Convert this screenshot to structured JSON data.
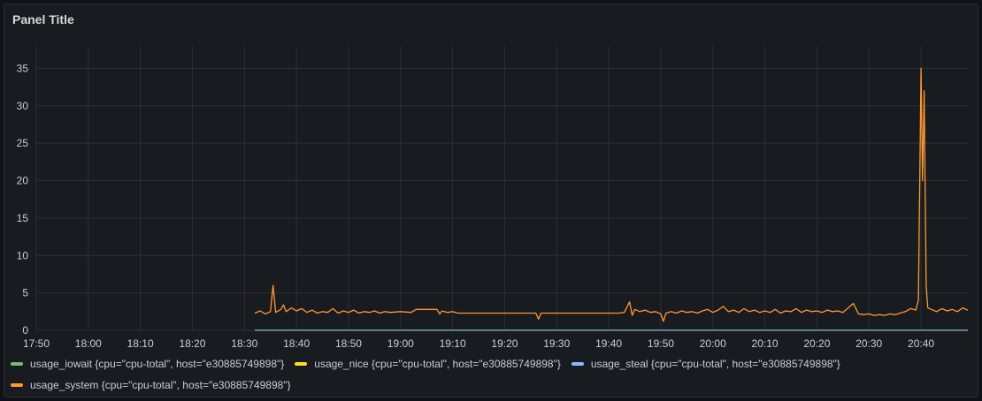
{
  "panel": {
    "title": "Panel Title"
  },
  "chart_data": {
    "type": "line",
    "title": "Panel Title",
    "xlabel": "",
    "ylabel": "",
    "x_ticks": [
      "17:50",
      "18:00",
      "18:10",
      "18:20",
      "18:30",
      "18:40",
      "18:50",
      "19:00",
      "19:10",
      "19:20",
      "19:30",
      "19:40",
      "19:50",
      "20:00",
      "20:10",
      "20:20",
      "20:30",
      "20:40"
    ],
    "y_ticks": [
      0,
      5,
      10,
      15,
      20,
      25,
      30,
      35
    ],
    "xlim": [
      "17:50",
      "20:49"
    ],
    "ylim": [
      0,
      38
    ],
    "grid": true,
    "legend_position": "bottom",
    "series": [
      {
        "name": "usage_iowait {cpu=\"cpu-total\", host=\"e30885749898\"}",
        "color": "#73bf69",
        "points": [
          [
            "18:32",
            0.02
          ],
          [
            "20:49",
            0.02
          ]
        ]
      },
      {
        "name": "usage_nice {cpu=\"cpu-total\", host=\"e30885749898\"}",
        "color": "#fade2a",
        "points": [
          [
            "18:32",
            0
          ],
          [
            "20:49",
            0
          ]
        ]
      },
      {
        "name": "usage_steal {cpu=\"cpu-total\", host=\"e30885749898\"}",
        "color": "#8ab8ff",
        "points": [
          [
            "18:32",
            0
          ],
          [
            "20:49",
            0
          ]
        ]
      },
      {
        "name": "usage_system {cpu=\"cpu-total\", host=\"e30885749898\"}",
        "color": "#ff9830",
        "points": [
          [
            "18:32",
            2.3
          ],
          [
            "18:33",
            2.6
          ],
          [
            "18:34",
            2.2
          ],
          [
            "18:35",
            2.5
          ],
          [
            "18:35.5",
            6.0
          ],
          [
            "18:36",
            2.4
          ],
          [
            "18:37",
            2.8
          ],
          [
            "18:37.5",
            3.4
          ],
          [
            "18:38",
            2.5
          ],
          [
            "18:39",
            3.0
          ],
          [
            "18:40",
            2.6
          ],
          [
            "18:41",
            2.9
          ],
          [
            "18:42",
            2.4
          ],
          [
            "18:43",
            2.7
          ],
          [
            "18:44",
            2.3
          ],
          [
            "18:45",
            2.5
          ],
          [
            "18:46",
            2.4
          ],
          [
            "18:47",
            2.9
          ],
          [
            "18:48",
            2.3
          ],
          [
            "18:49",
            2.6
          ],
          [
            "18:50",
            2.4
          ],
          [
            "18:51",
            2.7
          ],
          [
            "18:52",
            2.3
          ],
          [
            "18:53",
            2.5
          ],
          [
            "18:54",
            2.4
          ],
          [
            "18:55",
            2.6
          ],
          [
            "18:56",
            2.3
          ],
          [
            "18:57",
            2.5
          ],
          [
            "18:58",
            2.4
          ],
          [
            "19:00",
            2.5
          ],
          [
            "19:02",
            2.4
          ],
          [
            "19:03",
            2.8
          ],
          [
            "19:07",
            2.8
          ],
          [
            "19:07.5",
            2.2
          ],
          [
            "19:08",
            2.6
          ],
          [
            "19:09",
            2.4
          ],
          [
            "19:10",
            2.5
          ],
          [
            "19:11",
            2.3
          ],
          [
            "19:26",
            2.3
          ],
          [
            "19:26.5",
            1.5
          ],
          [
            "19:27",
            2.3
          ],
          [
            "19:42",
            2.3
          ],
          [
            "19:43",
            2.4
          ],
          [
            "19:44",
            3.8
          ],
          [
            "19:44.5",
            2.0
          ],
          [
            "19:45",
            2.8
          ],
          [
            "19:46",
            2.5
          ],
          [
            "19:47",
            2.7
          ],
          [
            "19:48",
            2.4
          ],
          [
            "19:49",
            2.5
          ],
          [
            "19:50",
            2.2
          ],
          [
            "19:50.5",
            1.2
          ],
          [
            "19:51",
            2.3
          ],
          [
            "19:52",
            2.5
          ],
          [
            "19:53",
            2.3
          ],
          [
            "19:54",
            2.6
          ],
          [
            "19:55",
            2.4
          ],
          [
            "19:56",
            2.5
          ],
          [
            "19:57",
            2.3
          ],
          [
            "19:58",
            2.6
          ],
          [
            "19:59",
            2.8
          ],
          [
            "20:00",
            2.4
          ],
          [
            "20:01",
            2.7
          ],
          [
            "20:02",
            3.2
          ],
          [
            "20:03",
            2.5
          ],
          [
            "20:04",
            2.7
          ],
          [
            "20:05",
            2.4
          ],
          [
            "20:06",
            2.9
          ],
          [
            "20:07",
            2.5
          ],
          [
            "20:08",
            2.7
          ],
          [
            "20:09",
            2.4
          ],
          [
            "20:10",
            2.6
          ],
          [
            "20:11",
            2.4
          ],
          [
            "20:12",
            2.8
          ],
          [
            "20:13",
            2.3
          ],
          [
            "20:14",
            2.6
          ],
          [
            "20:15",
            2.5
          ],
          [
            "20:16",
            2.9
          ],
          [
            "20:17",
            2.4
          ],
          [
            "20:18",
            2.7
          ],
          [
            "20:19",
            2.5
          ],
          [
            "20:20",
            2.6
          ],
          [
            "20:21",
            2.4
          ],
          [
            "20:22",
            2.7
          ],
          [
            "20:23",
            2.5
          ],
          [
            "20:24",
            2.6
          ],
          [
            "20:25",
            2.4
          ],
          [
            "20:26",
            3.0
          ],
          [
            "20:27",
            3.6
          ],
          [
            "20:28",
            2.2
          ],
          [
            "20:29",
            2.1
          ],
          [
            "20:30",
            2.2
          ],
          [
            "20:31",
            2.0
          ],
          [
            "20:32",
            2.1
          ],
          [
            "20:33",
            2.0
          ],
          [
            "20:34",
            2.2
          ],
          [
            "20:35",
            2.1
          ],
          [
            "20:36",
            2.3
          ],
          [
            "20:37",
            2.5
          ],
          [
            "20:38",
            2.9
          ],
          [
            "20:39",
            2.7
          ],
          [
            "20:39.5",
            4.0
          ],
          [
            "20:40",
            35.0
          ],
          [
            "20:40.3",
            20.0
          ],
          [
            "20:40.6",
            32.0
          ],
          [
            "20:41",
            6.0
          ],
          [
            "20:41.3",
            3.0
          ],
          [
            "20:42",
            2.8
          ],
          [
            "20:43",
            2.5
          ],
          [
            "20:44",
            2.9
          ],
          [
            "20:45",
            2.6
          ],
          [
            "20:46",
            2.8
          ],
          [
            "20:47",
            2.5
          ],
          [
            "20:48",
            3.0
          ],
          [
            "20:49",
            2.7
          ]
        ]
      }
    ]
  }
}
